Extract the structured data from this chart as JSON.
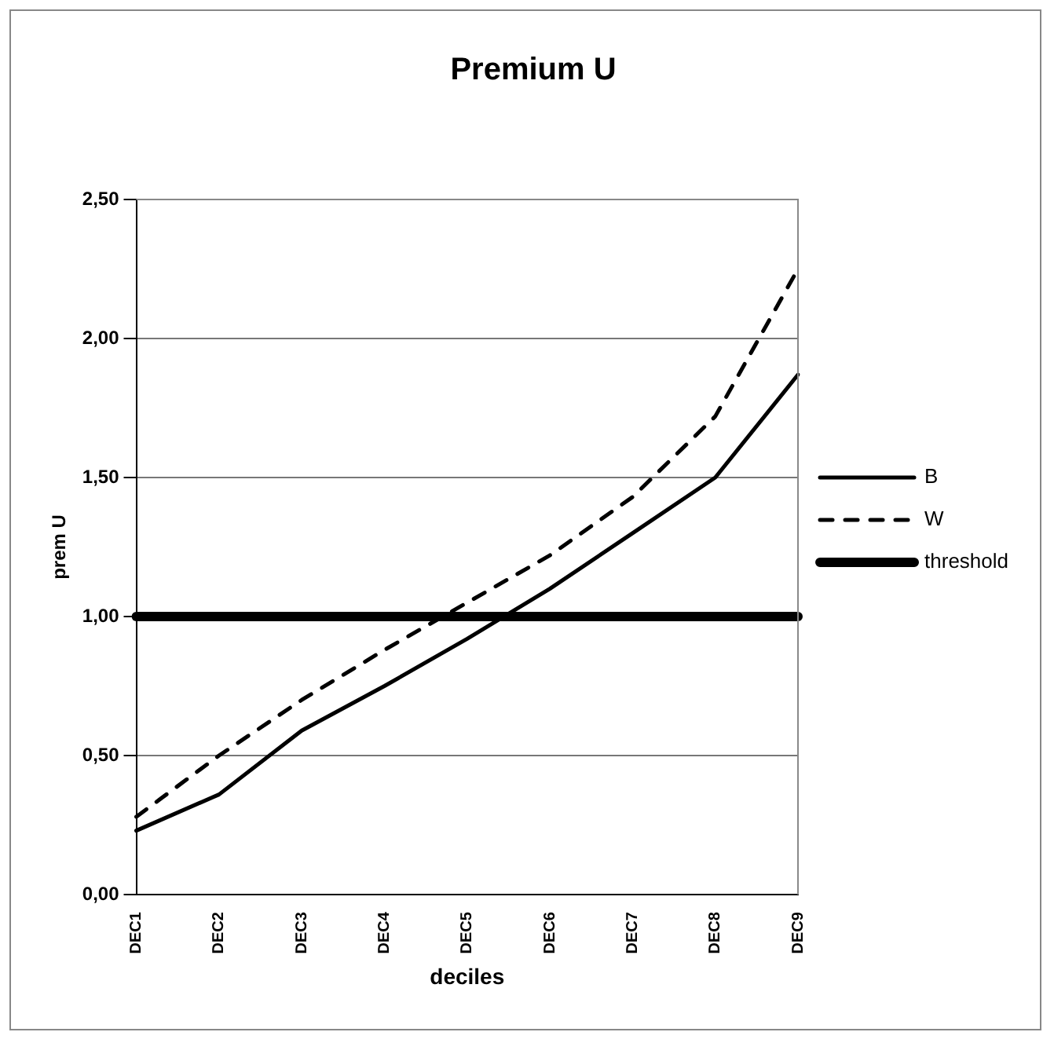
{
  "chart_data": {
    "type": "line",
    "title": "Premium U",
    "xlabel": "deciles",
    "ylabel": "prem U",
    "categories": [
      "DEC1",
      "DEC2",
      "DEC3",
      "DEC4",
      "DEC5",
      "DEC6",
      "DEC7",
      "DEC8",
      "DEC9"
    ],
    "series": [
      {
        "name": "B",
        "color": "#000000",
        "line_style": "solid",
        "values": [
          0.23,
          0.36,
          0.59,
          0.75,
          0.92,
          1.1,
          1.3,
          1.5,
          1.87
        ]
      },
      {
        "name": "W",
        "color": "#000000",
        "line_style": "dashed",
        "values": [
          0.28,
          0.5,
          0.7,
          0.88,
          1.05,
          1.22,
          1.43,
          1.72,
          2.25
        ]
      },
      {
        "name": "threshold",
        "color": "#000000",
        "line_style": "solid",
        "values": [
          1,
          1,
          1,
          1,
          1,
          1,
          1,
          1,
          1
        ]
      }
    ],
    "ylim": [
      0,
      2.5
    ],
    "yticks": [
      {
        "value": 0,
        "label": "0,00"
      },
      {
        "value": 0.5,
        "label": "0,50"
      },
      {
        "value": 1,
        "label": "1,00"
      },
      {
        "value": 1.5,
        "label": "1,50"
      },
      {
        "value": 2,
        "label": "2,00"
      },
      {
        "value": 2.5,
        "label": "2,50"
      }
    ],
    "grid": "y",
    "legend": "right",
    "marker": "none"
  }
}
